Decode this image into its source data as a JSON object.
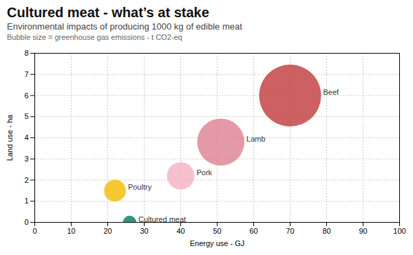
{
  "chart_data": {
    "type": "scatter",
    "title": "Cultured meat - what’s at stake",
    "subtitle": "Environmental impacts of producing 1000 kg of edible meat",
    "annotations": [
      "Bubble size = greenhouse gas emissions - t CO2-eq"
    ],
    "xlabel": "Energy use - GJ",
    "ylabel": "Land use - ha",
    "categories": [
      "Poultry",
      "Pork",
      "Lamb",
      "Beef",
      "Cultured meat"
    ],
    "x": [
      22,
      40,
      51,
      70,
      26
    ],
    "y": [
      1.5,
      2.2,
      3.8,
      6.0,
      0.0
    ],
    "sizes": [
      3.7,
      5.9,
      17.4,
      30.0,
      1.4
    ],
    "colors": [
      "#F2BC00",
      "#F4B0C0",
      "#DC8090",
      "#C03838",
      "#007B60"
    ],
    "xlim": [
      0,
      100
    ],
    "ylim": [
      0,
      8
    ],
    "xticks": [
      0,
      10,
      20,
      30,
      40,
      50,
      60,
      70,
      80,
      90,
      100
    ],
    "yticks": [
      0,
      1,
      2,
      3,
      4,
      5,
      6,
      7,
      8
    ],
    "grid": true
  }
}
